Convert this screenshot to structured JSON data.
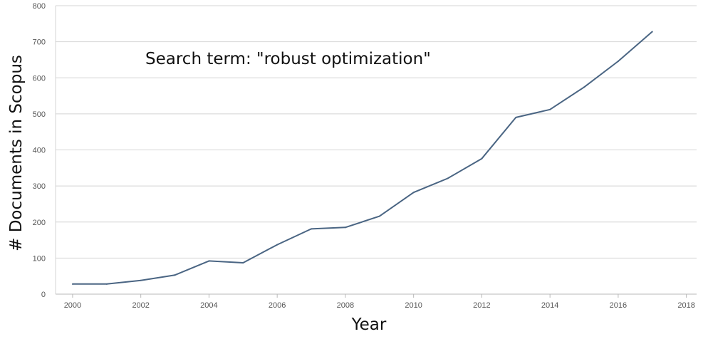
{
  "chart_data": {
    "type": "line",
    "annotation": "Search term: \"robust optimization\"",
    "xlabel": "Year",
    "ylabel": "# Documents in Scopus",
    "xlim": [
      1999.5,
      2018.3
    ],
    "ylim": [
      0,
      800
    ],
    "x_ticks": [
      2000,
      2002,
      2004,
      2006,
      2008,
      2010,
      2012,
      2014,
      2016,
      2018
    ],
    "y_ticks": [
      0,
      100,
      200,
      300,
      400,
      500,
      600,
      700,
      800
    ],
    "grid": "horizontal",
    "series": [
      {
        "color": "#4a6583",
        "x": [
          2000,
          2001,
          2002,
          2003,
          2004,
          2005,
          2006,
          2007,
          2008,
          2009,
          2010,
          2011,
          2012,
          2013,
          2014,
          2015,
          2016,
          2017
        ],
        "y": [
          28,
          28,
          38,
          53,
          92,
          87,
          137,
          181,
          185,
          216,
          282,
          321,
          376,
          490,
          512,
          574,
          646,
          728
        ]
      }
    ]
  }
}
